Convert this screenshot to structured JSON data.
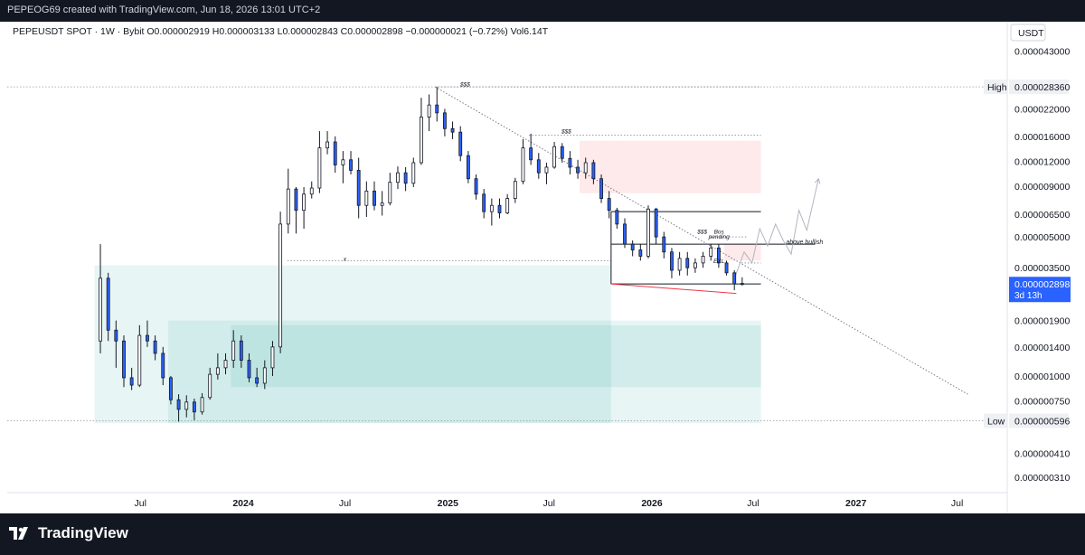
{
  "header": {
    "title": "PEPEOG69 created with TradingView.com, Jun 18, 2026 13:01 UTC+2"
  },
  "footer": {
    "brand": "TradingView"
  },
  "chart_data": {
    "type": "candlestick",
    "symbol_line": "PEPEUSDT SPOT · 1W · Bybit  O0.000002919 H0.000003133 L0.000002843 C0.000002898 −0.000000021 (−0.72%) Vol6.14T",
    "currency": "USDT",
    "y_scale": "log",
    "y_tick_labels": [
      {
        "label": "0.000043000",
        "value": 4.3e-05
      },
      {
        "label": "0.000022000",
        "value": 2.2e-05
      },
      {
        "label": "0.000016000",
        "value": 1.6e-05
      },
      {
        "label": "0.000012000",
        "value": 1.2e-05
      },
      {
        "label": "0.000009000",
        "value": 9e-06
      },
      {
        "label": "0.000006500",
        "value": 6.5e-06
      },
      {
        "label": "0.000005000",
        "value": 5e-06
      },
      {
        "label": "0.000003500",
        "value": 3.5e-06
      },
      {
        "label": "0.000001900",
        "value": 1.9e-06
      },
      {
        "label": "0.000001400",
        "value": 1.4e-06
      },
      {
        "label": "0.000001000",
        "value": 1e-06
      },
      {
        "label": "0.000000750",
        "value": 7.5e-07
      },
      {
        "label": "0.000000410",
        "value": 4.1e-07
      },
      {
        "label": "0.000000310",
        "value": 3.1e-07
      }
    ],
    "x_tick_labels": [
      {
        "label": "Jul",
        "date": "2023-07"
      },
      {
        "label": "2024",
        "date": "2024-01"
      },
      {
        "label": "Jul",
        "date": "2024-07"
      },
      {
        "label": "2025",
        "date": "2025-01"
      },
      {
        "label": "Jul",
        "date": "2025-07"
      },
      {
        "label": "2026",
        "date": "2026-01"
      },
      {
        "label": "Jul",
        "date": "2026-07"
      },
      {
        "label": "2027",
        "date": "2027-01"
      },
      {
        "label": "Jul",
        "date": "2027-07"
      }
    ],
    "price_markers": [
      {
        "tag": "High",
        "label": "0.000028360",
        "value": 2.836e-05
      },
      {
        "tag": "Low",
        "label": "0.000000596",
        "value": 5.96e-07
      }
    ],
    "last_price": {
      "label": "0.000002898",
      "countdown": "3d 13h",
      "value": 2.898e-06
    },
    "annotations": [
      {
        "text": "$$$",
        "date": "2025-02",
        "value": 2.85e-05
      },
      {
        "text": "$$$",
        "date": "2025-08",
        "value": 1.66e-05
      },
      {
        "text": "$$$",
        "date": "2026-04",
        "value": 5.2e-06
      },
      {
        "text": "Bos",
        "date": "2026-05",
        "value": 5.2e-06
      },
      {
        "text": "pending",
        "date": "2026-05",
        "value": 4.9e-06
      },
      {
        "text": "above bullish",
        "date": "2026-10",
        "value": 4.6e-06
      },
      {
        "text": "EXL",
        "date": "2026-05",
        "value": 3.7e-06
      },
      {
        "text": "x",
        "date": "2024-07",
        "value": 3.8e-06
      }
    ],
    "candles": [
      {
        "t": "2023-04-17",
        "o": 1.5e-06,
        "h": 4.6e-06,
        "l": 1.3e-06,
        "c": 3.1e-06
      },
      {
        "t": "2023-05-01",
        "o": 3.1e-06,
        "h": 3.3e-06,
        "l": 1.5e-06,
        "c": 1.7e-06
      },
      {
        "t": "2023-05-15",
        "o": 1.7e-06,
        "h": 1.9e-06,
        "l": 1.1e-06,
        "c": 1.5e-06
      },
      {
        "t": "2023-05-29",
        "o": 1.5e-06,
        "h": 1.6e-06,
        "l": 8.8e-07,
        "c": 9.8e-07
      },
      {
        "t": "2023-06-12",
        "o": 9.8e-07,
        "h": 1.1e-06,
        "l": 8.5e-07,
        "c": 9e-07
      },
      {
        "t": "2023-06-26",
        "o": 9e-07,
        "h": 1.8e-06,
        "l": 8.8e-07,
        "c": 1.6e-06
      },
      {
        "t": "2023-07-10",
        "o": 1.6e-06,
        "h": 1.9e-06,
        "l": 1.4e-06,
        "c": 1.5e-06
      },
      {
        "t": "2023-07-24",
        "o": 1.5e-06,
        "h": 1.6e-06,
        "l": 1.2e-06,
        "c": 1.3e-06
      },
      {
        "t": "2023-08-07",
        "o": 1.3e-06,
        "h": 1.4e-06,
        "l": 9e-07,
        "c": 9.8e-07
      },
      {
        "t": "2023-08-21",
        "o": 9.8e-07,
        "h": 1e-06,
        "l": 7.2e-07,
        "c": 7.6e-07
      },
      {
        "t": "2023-09-04",
        "o": 7.6e-07,
        "h": 8.1e-07,
        "l": 5.9e-07,
        "c": 6.8e-07
      },
      {
        "t": "2023-09-18",
        "o": 6.8e-07,
        "h": 8e-07,
        "l": 6.2e-07,
        "c": 7.4e-07
      },
      {
        "t": "2023-10-02",
        "o": 7.4e-07,
        "h": 7.7e-07,
        "l": 6e-07,
        "c": 6.6e-07
      },
      {
        "t": "2023-10-16",
        "o": 6.6e-07,
        "h": 8.2e-07,
        "l": 6.4e-07,
        "c": 7.8e-07
      },
      {
        "t": "2023-10-30",
        "o": 7.8e-07,
        "h": 1.1e-06,
        "l": 7.6e-07,
        "c": 1.02e-06
      },
      {
        "t": "2023-11-13",
        "o": 1.02e-06,
        "h": 1.3e-06,
        "l": 9.6e-07,
        "c": 1.1e-06
      },
      {
        "t": "2023-11-27",
        "o": 1.1e-06,
        "h": 1.3e-06,
        "l": 1.02e-06,
        "c": 1.2e-06
      },
      {
        "t": "2023-12-11",
        "o": 1.2e-06,
        "h": 1.7e-06,
        "l": 1.1e-06,
        "c": 1.5e-06
      },
      {
        "t": "2023-12-25",
        "o": 1.5e-06,
        "h": 1.6e-06,
        "l": 1.1e-06,
        "c": 1.2e-06
      },
      {
        "t": "2024-01-08",
        "o": 1.2e-06,
        "h": 1.3e-06,
        "l": 9.3e-07,
        "c": 9.8e-07
      },
      {
        "t": "2024-01-22",
        "o": 9.8e-07,
        "h": 1.1e-06,
        "l": 8.8e-07,
        "c": 9.2e-07
      },
      {
        "t": "2024-02-05",
        "o": 9.2e-07,
        "h": 1.2e-06,
        "l": 8.6e-07,
        "c": 1.1e-06
      },
      {
        "t": "2024-02-19",
        "o": 1.1e-06,
        "h": 1.5e-06,
        "l": 1e-06,
        "c": 1.4e-06
      },
      {
        "t": "2024-03-04",
        "o": 1.4e-06,
        "h": 6.7e-06,
        "l": 1.3e-06,
        "c": 5.8e-06
      },
      {
        "t": "2024-03-18",
        "o": 5.8e-06,
        "h": 1.1e-05,
        "l": 5.2e-06,
        "c": 8.7e-06
      },
      {
        "t": "2024-04-01",
        "o": 8.7e-06,
        "h": 8.9e-06,
        "l": 5.2e-06,
        "c": 6.8e-06
      },
      {
        "t": "2024-04-15",
        "o": 6.8e-06,
        "h": 8.9e-06,
        "l": 5.5e-06,
        "c": 8.2e-06
      },
      {
        "t": "2024-04-29",
        "o": 8.2e-06,
        "h": 9.5e-06,
        "l": 7.8e-06,
        "c": 8.8e-06
      },
      {
        "t": "2024-05-13",
        "o": 8.8e-06,
        "h": 1.7e-05,
        "l": 8.3e-06,
        "c": 1.4e-05
      },
      {
        "t": "2024-05-27",
        "o": 1.4e-05,
        "h": 1.7e-05,
        "l": 1.3e-05,
        "c": 1.5e-05
      },
      {
        "t": "2024-06-10",
        "o": 1.5e-05,
        "h": 1.6e-05,
        "l": 1.05e-05,
        "c": 1.15e-05
      },
      {
        "t": "2024-06-24",
        "o": 1.15e-05,
        "h": 1.35e-05,
        "l": 9.3e-06,
        "c": 1.22e-05
      },
      {
        "t": "2024-07-08",
        "o": 1.22e-05,
        "h": 1.35e-05,
        "l": 1.03e-05,
        "c": 1.08e-05
      },
      {
        "t": "2024-07-22",
        "o": 1.08e-05,
        "h": 1.25e-05,
        "l": 6.2e-06,
        "c": 7.2e-06
      },
      {
        "t": "2024-08-05",
        "o": 7.2e-06,
        "h": 9.5e-06,
        "l": 6.3e-06,
        "c": 8.5e-06
      },
      {
        "t": "2024-08-19",
        "o": 8.5e-06,
        "h": 9.5e-06,
        "l": 6.8e-06,
        "c": 7.2e-06
      },
      {
        "t": "2024-09-02",
        "o": 7.2e-06,
        "h": 8.5e-06,
        "l": 6.4e-06,
        "c": 7.4e-06
      },
      {
        "t": "2024-09-16",
        "o": 7.4e-06,
        "h": 1.05e-05,
        "l": 7.2e-06,
        "c": 9.4e-06
      },
      {
        "t": "2024-09-30",
        "o": 9.4e-06,
        "h": 1.13e-05,
        "l": 8.7e-06,
        "c": 1.05e-05
      },
      {
        "t": "2024-10-14",
        "o": 1.05e-05,
        "h": 1.12e-05,
        "l": 8.5e-06,
        "c": 9.3e-06
      },
      {
        "t": "2024-10-28",
        "o": 9.3e-06,
        "h": 1.25e-05,
        "l": 8.9e-06,
        "c": 1.18e-05
      },
      {
        "t": "2024-11-11",
        "o": 1.18e-05,
        "h": 2.5e-05,
        "l": 1.15e-05,
        "c": 2e-05
      },
      {
        "t": "2024-11-25",
        "o": 2e-05,
        "h": 2.6e-05,
        "l": 1.7e-05,
        "c": 2.3e-05
      },
      {
        "t": "2024-12-09",
        "o": 2.3e-05,
        "h": 2.836e-05,
        "l": 1.9e-05,
        "c": 2.1e-05
      },
      {
        "t": "2024-12-23",
        "o": 2.1e-05,
        "h": 2.2e-05,
        "l": 1.6e-05,
        "c": 1.75e-05
      },
      {
        "t": "2025-01-06",
        "o": 1.75e-05,
        "h": 1.9e-05,
        "l": 1.55e-05,
        "c": 1.68e-05
      },
      {
        "t": "2025-01-20",
        "o": 1.68e-05,
        "h": 1.8e-05,
        "l": 1.2e-05,
        "c": 1.28e-05
      },
      {
        "t": "2025-02-03",
        "o": 1.28e-05,
        "h": 1.35e-05,
        "l": 9.3e-06,
        "c": 9.8e-06
      },
      {
        "t": "2025-02-17",
        "o": 9.8e-06,
        "h": 1.03e-05,
        "l": 7.7e-06,
        "c": 8.2e-06
      },
      {
        "t": "2025-03-03",
        "o": 8.2e-06,
        "h": 8.7e-06,
        "l": 6.2e-06,
        "c": 6.7e-06
      },
      {
        "t": "2025-03-17",
        "o": 6.7e-06,
        "h": 7.8e-06,
        "l": 5.7e-06,
        "c": 7.2e-06
      },
      {
        "t": "2025-03-31",
        "o": 7.2e-06,
        "h": 7.8e-06,
        "l": 6.2e-06,
        "c": 6.6e-06
      },
      {
        "t": "2025-04-14",
        "o": 6.6e-06,
        "h": 8.2e-06,
        "l": 6.5e-06,
        "c": 7.8e-06
      },
      {
        "t": "2025-04-28",
        "o": 7.8e-06,
        "h": 9.9e-06,
        "l": 7.4e-06,
        "c": 9.5e-06
      },
      {
        "t": "2025-05-12",
        "o": 9.5e-06,
        "h": 1.55e-05,
        "l": 9.2e-06,
        "c": 1.4e-05
      },
      {
        "t": "2025-05-26",
        "o": 1.4e-05,
        "h": 1.65e-05,
        "l": 1.15e-05,
        "c": 1.22e-05
      },
      {
        "t": "2025-06-09",
        "o": 1.22e-05,
        "h": 1.32e-05,
        "l": 9.8e-06,
        "c": 1.05e-05
      },
      {
        "t": "2025-06-23",
        "o": 1.05e-05,
        "h": 1.18e-05,
        "l": 9.2e-06,
        "c": 1.12e-05
      },
      {
        "t": "2025-07-07",
        "o": 1.12e-05,
        "h": 1.5e-05,
        "l": 1.1e-05,
        "c": 1.42e-05
      },
      {
        "t": "2025-07-21",
        "o": 1.42e-05,
        "h": 1.48e-05,
        "l": 1.18e-05,
        "c": 1.24e-05
      },
      {
        "t": "2025-08-04",
        "o": 1.24e-05,
        "h": 1.35e-05,
        "l": 1.03e-05,
        "c": 1.12e-05
      },
      {
        "t": "2025-08-18",
        "o": 1.12e-05,
        "h": 1.22e-05,
        "l": 9.8e-06,
        "c": 1.05e-05
      },
      {
        "t": "2025-09-01",
        "o": 1.05e-05,
        "h": 1.25e-05,
        "l": 9.8e-06,
        "c": 1.18e-05
      },
      {
        "t": "2025-09-15",
        "o": 1.18e-05,
        "h": 1.22e-05,
        "l": 9.2e-06,
        "c": 9.8e-06
      },
      {
        "t": "2025-09-29",
        "o": 9.8e-06,
        "h": 1.03e-05,
        "l": 7.4e-06,
        "c": 7.8e-06
      },
      {
        "t": "2025-10-13",
        "o": 7.8e-06,
        "h": 8.5e-06,
        "l": 6.2e-06,
        "c": 6.8e-06
      },
      {
        "t": "2025-10-27",
        "o": 6.8e-06,
        "h": 7e-06,
        "l": 5.5e-06,
        "c": 5.8e-06
      },
      {
        "t": "2025-11-10",
        "o": 5.8e-06,
        "h": 6.2e-06,
        "l": 4.4e-06,
        "c": 4.6e-06
      },
      {
        "t": "2025-11-24",
        "o": 4.6e-06,
        "h": 4.8e-06,
        "l": 4e-06,
        "c": 4.3e-06
      },
      {
        "t": "2025-12-08",
        "o": 4.3e-06,
        "h": 4.6e-06,
        "l": 3.8e-06,
        "c": 4e-06
      },
      {
        "t": "2025-12-22",
        "o": 4e-06,
        "h": 7.2e-06,
        "l": 3.9e-06,
        "c": 6.9e-06
      },
      {
        "t": "2026-01-05",
        "o": 6.9e-06,
        "h": 7e-06,
        "l": 4.6e-06,
        "c": 5e-06
      },
      {
        "t": "2026-01-19",
        "o": 5e-06,
        "h": 5.3e-06,
        "l": 3.9e-06,
        "c": 4.2e-06
      },
      {
        "t": "2026-02-02",
        "o": 4.2e-06,
        "h": 4.4e-06,
        "l": 3.1e-06,
        "c": 3.4e-06
      },
      {
        "t": "2026-02-16",
        "o": 3.4e-06,
        "h": 4.2e-06,
        "l": 3.2e-06,
        "c": 3.9e-06
      },
      {
        "t": "2026-03-02",
        "o": 3.9e-06,
        "h": 4.2e-06,
        "l": 3.2e-06,
        "c": 3.5e-06
      },
      {
        "t": "2026-03-16",
        "o": 3.5e-06,
        "h": 3.9e-06,
        "l": 3.3e-06,
        "c": 3.7e-06
      },
      {
        "t": "2026-03-30",
        "o": 3.7e-06,
        "h": 4.2e-06,
        "l": 3.5e-06,
        "c": 4e-06
      },
      {
        "t": "2026-04-13",
        "o": 4e-06,
        "h": 4.6e-06,
        "l": 3.8e-06,
        "c": 4.4e-06
      },
      {
        "t": "2026-04-27",
        "o": 4.4e-06,
        "h": 4.6e-06,
        "l": 3.5e-06,
        "c": 3.7e-06
      },
      {
        "t": "2026-05-11",
        "o": 3.7e-06,
        "h": 3.8e-06,
        "l": 3.2e-06,
        "c": 3.3e-06
      },
      {
        "t": "2026-05-25",
        "o": 3.3e-06,
        "h": 3.4e-06,
        "l": 2.7e-06,
        "c": 2.9e-06
      },
      {
        "t": "2026-06-08",
        "o": 2.919e-06,
        "h": 3.133e-06,
        "l": 2.843e-06,
        "c": 2.898e-06
      }
    ],
    "projection_path": [
      {
        "t": "2026-05-25",
        "v": 2.9e-06
      },
      {
        "t": "2026-06-15",
        "v": 4.2e-06
      },
      {
        "t": "2026-06-29",
        "v": 3.7e-06
      },
      {
        "t": "2026-07-13",
        "v": 5.5e-06
      },
      {
        "t": "2026-07-27",
        "v": 4.5e-06
      },
      {
        "t": "2026-08-10",
        "v": 5.8e-06
      },
      {
        "t": "2026-08-24",
        "v": 4.8e-06
      },
      {
        "t": "2026-09-07",
        "v": 4.1e-06
      },
      {
        "t": "2026-09-21",
        "v": 6.8e-06
      },
      {
        "t": "2026-10-05",
        "v": 5.4e-06
      },
      {
        "t": "2026-10-26",
        "v": 9.8e-06
      }
    ],
    "zones": [
      {
        "kind": "demand",
        "from": "2023-04-10",
        "to": "2025-10-20",
        "top": 3.6e-06,
        "bottom": 5.8e-07
      },
      {
        "kind": "demand",
        "from": "2023-08-20",
        "to": "2026-07-15",
        "top": 1.9e-06,
        "bottom": 5.8e-07
      },
      {
        "kind": "demand",
        "from": "2023-12-10",
        "to": "2026-07-15",
        "top": 1.8e-06,
        "bottom": 8.8e-07
      },
      {
        "kind": "supply",
        "from": "2025-08-25",
        "to": "2026-07-15",
        "top": 1.52e-05,
        "bottom": 8.3e-06
      },
      {
        "kind": "supply",
        "from": "2026-05-10",
        "to": "2026-07-15",
        "top": 4.6e-06,
        "bottom": 3.8e-06
      }
    ],
    "levels": [
      {
        "style": "dotted",
        "from": "2024-12-09",
        "to": "2026-07-15",
        "value": 2.836e-05
      },
      {
        "style": "dotted",
        "from": "2025-05-26",
        "to": "2026-07-15",
        "value": 1.62e-05
      },
      {
        "style": "dotted",
        "from": "2024-03-20",
        "to": "2025-10-20",
        "value": 3.8e-06
      },
      {
        "style": "dotted",
        "from": "2026-04-15",
        "to": "2026-06-20",
        "value": 5e-06
      },
      {
        "style": "solid",
        "from": "2025-10-20",
        "to": "2026-07-15",
        "value": 6.7e-06
      },
      {
        "style": "solid",
        "from": "2025-10-20",
        "to": "2026-10-20",
        "value": 4.6e-06
      },
      {
        "style": "solid",
        "from": "2025-10-20",
        "to": "2026-07-15",
        "value": 2.9e-06
      },
      {
        "style": "dotted",
        "from": "2026-06-10",
        "to": "2026-07-15",
        "value": 3.7e-06
      }
    ],
    "trendlines": [
      {
        "style": "dotted",
        "from": {
          "t": "2024-12-09",
          "v": 2.836e-05
        },
        "to": {
          "t": "2027-07-20",
          "v": 8.1e-07
        }
      },
      {
        "style": "solid-red",
        "from": {
          "t": "2025-10-20",
          "v": 2.9e-06
        },
        "to": {
          "t": "2026-06-01",
          "v": 2.6e-06
        }
      }
    ]
  }
}
